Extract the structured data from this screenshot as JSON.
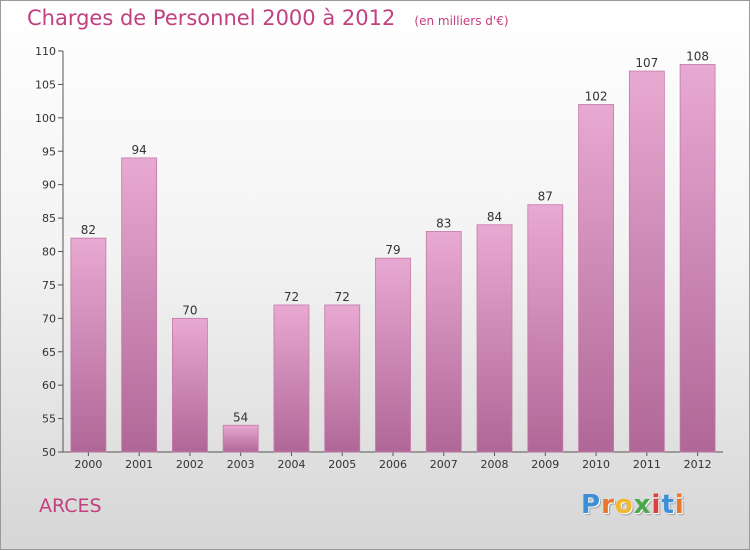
{
  "chart_data": {
    "type": "bar",
    "title": "Charges de Personnel 2000 à 2012",
    "unit_note": "(en milliers d'€)",
    "categories": [
      "2000",
      "2001",
      "2002",
      "2003",
      "2004",
      "2005",
      "2006",
      "2007",
      "2008",
      "2009",
      "2010",
      "2011",
      "2012"
    ],
    "values": [
      82,
      94,
      70,
      54,
      72,
      72,
      79,
      83,
      84,
      87,
      102,
      107,
      108
    ],
    "ylim": [
      50,
      110
    ],
    "yticks": [
      50,
      55,
      60,
      65,
      70,
      75,
      80,
      85,
      90,
      95,
      100,
      105,
      110
    ],
    "xlabel": "",
    "ylabel": "",
    "grid": false,
    "bar_color": "#d98bb8"
  },
  "commune": "ARCES",
  "logo": {
    "letters": [
      "P",
      "r",
      "o",
      "x",
      "i",
      "t",
      "i"
    ],
    "colors": [
      "#3c8fd6",
      "#e8762b",
      "#f1b82d",
      "#49a84a",
      "#d8403b",
      "#3c8fd6",
      "#e8762b"
    ]
  }
}
